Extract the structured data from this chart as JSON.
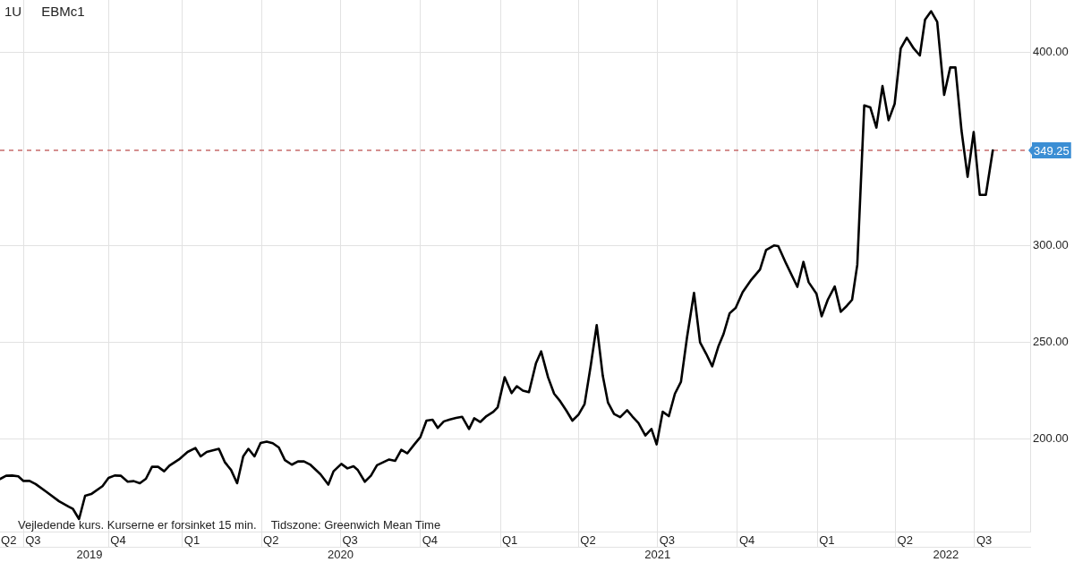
{
  "chart_data": {
    "type": "line",
    "title": "EBMc1",
    "subtitle": "1U",
    "annotations": [
      "Vejledende kurs. Kurserne er forsinket 15 min.",
      "Tidszone: Greenwich Mean Time"
    ],
    "x": [
      "2019-06-05",
      "2019-06-12",
      "2019-06-19",
      "2019-06-26",
      "2019-07-02",
      "2019-07-09",
      "2019-07-16",
      "2019-07-29",
      "2019-08-12",
      "2019-08-23",
      "2019-08-28",
      "2019-09-04",
      "2019-09-11",
      "2019-09-18",
      "2019-10-01",
      "2019-10-08",
      "2019-10-15",
      "2019-10-22",
      "2019-10-30",
      "2019-11-06",
      "2019-11-13",
      "2019-11-20",
      "2019-11-27",
      "2019-12-04",
      "2019-12-11",
      "2019-12-17",
      "2019-12-28",
      "2020-01-07",
      "2020-01-16",
      "2020-01-22",
      "2020-01-29",
      "2020-02-12",
      "2020-02-19",
      "2020-02-26",
      "2020-03-04",
      "2020-03-11",
      "2020-03-17",
      "2020-03-24",
      "2020-03-31",
      "2020-04-07",
      "2020-04-14",
      "2020-04-21",
      "2020-04-28",
      "2020-05-06",
      "2020-05-13",
      "2020-05-20",
      "2020-05-27",
      "2020-06-08",
      "2020-06-17",
      "2020-06-23",
      "2020-07-02",
      "2020-07-09",
      "2020-07-16",
      "2020-07-21",
      "2020-07-29",
      "2020-08-05",
      "2020-08-12",
      "2020-08-19",
      "2020-08-26",
      "2020-09-02",
      "2020-09-09",
      "2020-09-16",
      "2020-09-24",
      "2020-10-01",
      "2020-10-08",
      "2020-10-15",
      "2020-10-21",
      "2020-10-28",
      "2020-11-04",
      "2020-11-11",
      "2020-11-18",
      "2020-11-26",
      "2020-12-02",
      "2020-12-09",
      "2020-12-16",
      "2020-12-24",
      "2020-12-29",
      "2021-01-06",
      "2021-01-14",
      "2021-01-20",
      "2021-01-27",
      "2021-02-03",
      "2021-02-11",
      "2021-02-17",
      "2021-02-25",
      "2021-03-04",
      "2021-03-11",
      "2021-03-18",
      "2021-03-25",
      "2021-04-01",
      "2021-04-08",
      "2021-04-15",
      "2021-04-22",
      "2021-04-29",
      "2021-05-05",
      "2021-05-12",
      "2021-05-19",
      "2021-05-27",
      "2021-06-02",
      "2021-06-09",
      "2021-06-17",
      "2021-06-24",
      "2021-06-30",
      "2021-07-07",
      "2021-07-14",
      "2021-07-21",
      "2021-07-28",
      "2021-08-04",
      "2021-08-12",
      "2021-08-19",
      "2021-08-26",
      "2021-09-02",
      "2021-09-09",
      "2021-09-15",
      "2021-09-22",
      "2021-09-29",
      "2021-10-07",
      "2021-10-17",
      "2021-10-27",
      "2021-11-03",
      "2021-11-12",
      "2021-11-17",
      "2021-11-26",
      "2021-12-05",
      "2021-12-09",
      "2021-12-16",
      "2021-12-22",
      "2021-12-31",
      "2022-01-06",
      "2022-01-13",
      "2022-01-21",
      "2022-01-28",
      "2022-02-04",
      "2022-02-10",
      "2022-02-16",
      "2022-02-24",
      "2022-03-03",
      "2022-03-10",
      "2022-03-17",
      "2022-03-24",
      "2022-03-31",
      "2022-04-07",
      "2022-04-14",
      "2022-04-22",
      "2022-04-29",
      "2022-05-05",
      "2022-05-12",
      "2022-05-19",
      "2022-05-27",
      "2022-06-03",
      "2022-06-09",
      "2022-06-16",
      "2022-06-23",
      "2022-06-30",
      "2022-07-07",
      "2022-07-14",
      "2022-07-22"
    ],
    "values": [
      179.2,
      180.9,
      181.0,
      180.6,
      178.2,
      178.2,
      176.6,
      172.4,
      167.7,
      164.9,
      163.7,
      158.5,
      170.5,
      171.4,
      175.5,
      179.8,
      181.0,
      180.9,
      177.8,
      178.1,
      177.0,
      179.3,
      185.5,
      185.5,
      183.2,
      186.1,
      189.3,
      193.2,
      195.2,
      190.9,
      193.2,
      194.8,
      187.8,
      183.9,
      177.0,
      190.9,
      194.8,
      190.9,
      197.8,
      198.5,
      197.7,
      195.5,
      189.0,
      186.6,
      188.3,
      188.3,
      186.7,
      181.6,
      176.3,
      183.2,
      187.0,
      184.7,
      185.8,
      183.8,
      177.8,
      180.9,
      186.3,
      187.8,
      189.3,
      188.6,
      194.3,
      192.5,
      197.1,
      200.9,
      209.4,
      209.9,
      205.6,
      209.0,
      210.0,
      210.8,
      211.4,
      205.1,
      210.6,
      208.7,
      211.7,
      214.0,
      216.3,
      231.8,
      223.6,
      227.2,
      224.9,
      224.1,
      239.0,
      245.2,
      231.8,
      223.3,
      219.4,
      214.6,
      209.4,
      212.5,
      217.9,
      237.5,
      258.8,
      232.5,
      218.7,
      212.8,
      211.2,
      214.8,
      211.6,
      208.2,
      201.7,
      205.1,
      197.1,
      214.0,
      211.7,
      223.3,
      229.5,
      252.6,
      275.5,
      249.9,
      244.0,
      237.5,
      247.7,
      254.2,
      264.9,
      267.7,
      275.8,
      282.3,
      287.6,
      297.7,
      300.0,
      299.7,
      290.7,
      282.3,
      278.6,
      291.5,
      281.0,
      275.0,
      263.4,
      271.9,
      278.8,
      265.7,
      268.8,
      271.9,
      290.0,
      372.5,
      371.4,
      361.0,
      382.5,
      364.8,
      373.3,
      401.9,
      407.5,
      401.9,
      398.3,
      416.8,
      421.2,
      415.7,
      377.9,
      392.1,
      392.1,
      359.4,
      335.5,
      358.7,
      326.2,
      326.2,
      349.25
    ],
    "color": "#000000",
    "marker": "none",
    "xlim": [
      "2019-06-05",
      "2022-09-03"
    ],
    "xticks": [
      {
        "value": "2019-06-15",
        "label": "Q2"
      },
      {
        "value": "2019-07-02",
        "label": null
      },
      {
        "value": "2019-07-13",
        "label": "Q3"
      },
      {
        "value": "2019-10-08",
        "label": null
      },
      {
        "value": "2019-10-19",
        "label": "Q4"
      },
      {
        "value": "2020-01-01",
        "label": null
      },
      {
        "value": "2020-01-12",
        "label": "Q1"
      },
      {
        "value": "2020-04-01",
        "label": null
      },
      {
        "value": "2020-04-12",
        "label": "Q2"
      },
      {
        "value": "2020-07-01",
        "label": null
      },
      {
        "value": "2020-07-12",
        "label": "Q3"
      },
      {
        "value": "2020-10-01",
        "label": null
      },
      {
        "value": "2020-10-12",
        "label": "Q4"
      },
      {
        "value": "2021-01-01",
        "label": null
      },
      {
        "value": "2021-01-12",
        "label": "Q1"
      },
      {
        "value": "2021-04-01",
        "label": null
      },
      {
        "value": "2021-04-12",
        "label": "Q2"
      },
      {
        "value": "2021-07-01",
        "label": null
      },
      {
        "value": "2021-07-12",
        "label": "Q3"
      },
      {
        "value": "2021-10-01",
        "label": null
      },
      {
        "value": "2021-10-12",
        "label": "Q4"
      },
      {
        "value": "2022-01-01",
        "label": null
      },
      {
        "value": "2022-01-12",
        "label": "Q1"
      },
      {
        "value": "2022-04-01",
        "label": null
      },
      {
        "value": "2022-04-12",
        "label": "Q2"
      },
      {
        "value": "2022-07-01",
        "label": null
      },
      {
        "value": "2022-07-12",
        "label": "Q3"
      }
    ],
    "x2lim": [
      "2019-06-05",
      "2022-09-03"
    ],
    "x2ticks": [
      {
        "value": "2019-09-16",
        "label": "2019"
      },
      {
        "value": "2020-07-01",
        "label": "2020"
      },
      {
        "value": "2021-07-01",
        "label": "2021"
      },
      {
        "value": "2022-05-29",
        "label": "2022"
      }
    ],
    "ylim": [
      152,
      427
    ],
    "yticks": [
      {
        "value": 200,
        "label": "200.00"
      },
      {
        "value": 250,
        "label": "250.00"
      },
      {
        "value": 300,
        "label": "300.00"
      },
      {
        "value": 400,
        "label": "400.00"
      }
    ],
    "ref_lines": [
      {
        "axis": "y",
        "value": 349.25,
        "label": "349.25",
        "color": "#c86b6b",
        "line_style": "dashed"
      }
    ],
    "grid": true
  }
}
